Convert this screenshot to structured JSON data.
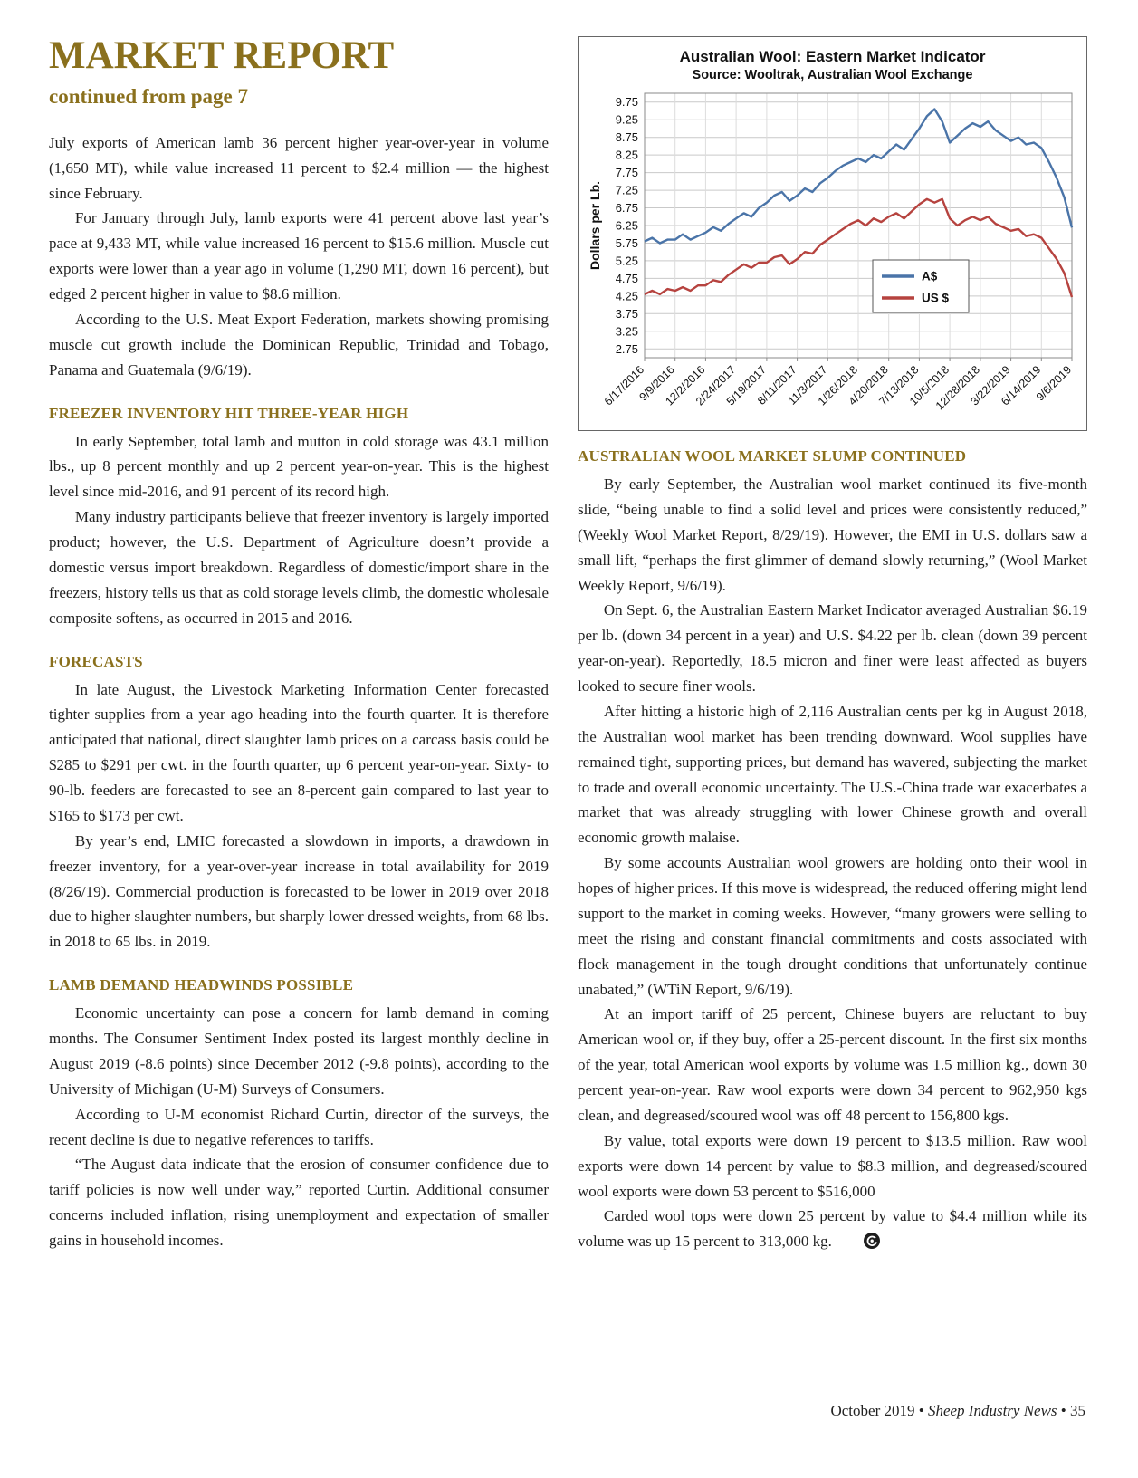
{
  "colors": {
    "accent": "#8a701d",
    "body_text": "#1f1f1f",
    "chart_blue": "#4a74a8",
    "chart_red": "#b6433f"
  },
  "header": {
    "title": "MARKET REPORT",
    "continued": "continued from page 7"
  },
  "left": {
    "intro": [
      "July exports of American lamb 36 percent higher year-over-year in volume (1,650 MT), while value increased 11 percent to $2.4 million — the highest since February.",
      "For January through July, lamb exports were 41 percent above last year’s pace at 9,433 MT, while value increased 16 percent to $15.6 million. Muscle cut exports were lower than a year ago in volume (1,290 MT, down 16 percent), but edged 2 percent higher in value to $8.6 million.",
      "According to the U.S. Meat Export Federation, markets showing promising muscle cut growth include the Dominican Republic, Trinidad and Tobago, Panama and Guatemala (9/6/19)."
    ],
    "sections": [
      {
        "heading": "FREEZER INVENTORY HIT THREE-YEAR HIGH",
        "paragraphs": [
          "In early September, total lamb and mutton in cold storage was 43.1 million lbs., up 8 percent monthly and up 2 percent year-on-year. This is the highest level since mid-2016, and 91 percent of its record high.",
          "Many industry participants believe that freezer inventory is largely imported product; however, the U.S. Department of Agriculture doesn’t provide a domestic versus import breakdown. Regardless of domestic/import share in the freezers, history tells us that as cold storage levels climb, the domestic wholesale composite softens, as occurred in 2015 and 2016."
        ]
      },
      {
        "heading": "FORECASTS",
        "paragraphs": [
          "In late August, the Livestock Marketing Information Center forecasted tighter supplies from a year ago heading into the fourth quarter. It is therefore anticipated that national, direct slaughter lamb prices on a carcass basis could be $285 to $291 per cwt. in the fourth quarter, up 6 percent year-on-year. Sixty- to 90-lb. feeders are forecasted to see an 8-percent gain compared to last year to $165 to $173 per cwt.",
          "By year’s end, LMIC forecasted a slowdown in imports, a drawdown in freezer inventory, for a year-over-year increase in total availability for 2019 (8/26/19). Commercial production is forecasted to be lower in 2019 over 2018 due to higher slaughter numbers, but sharply lower dressed weights, from 68 lbs. in 2018 to 65 lbs. in 2019."
        ]
      },
      {
        "heading": "LAMB DEMAND HEADWINDS POSSIBLE",
        "paragraphs": [
          "Economic uncertainty can pose a concern for lamb demand in coming months. The Consumer Sentiment Index posted its largest monthly decline in August 2019 (-8.6 points) since December 2012 (-9.8 points), according to the University of Michigan (U-M) Surveys of Consumers.",
          "According to U-M economist Richard Curtin, director of the surveys, the recent decline is due to negative references to tariffs.",
          "“The August data indicate that the erosion of consumer confidence due to tariff policies is now well under way,” reported Curtin. Additional consumer concerns included inflation, rising unemployment and expectation of smaller gains in household incomes."
        ]
      }
    ]
  },
  "right": {
    "sections": [
      {
        "heading": "AUSTRALIAN WOOL MARKET SLUMP CONTINUED",
        "paragraphs": [
          "By early September, the Australian wool market continued its five-month slide, “being unable to find a solid level and prices were consistently reduced,” (Weekly Wool Market Report, 8/29/19). However, the EMI in U.S. dollars saw a small lift, “perhaps the first glimmer of demand slowly returning,” (Wool Market Weekly Report, 9/6/19).",
          "On Sept. 6, the Australian Eastern Market Indicator averaged Australian $6.19 per lb. (down 34 percent in a year) and U.S. $4.22 per lb. clean (down 39 percent year-on-year). Reportedly, 18.5 micron and finer were least affected as buyers looked to secure finer wools.",
          "After hitting a historic high of 2,116 Australian cents per kg in August 2018, the Australian wool market has been trending downward. Wool supplies have remained tight, supporting prices, but demand has wavered, subjecting the market to trade and overall economic uncertainty. The U.S.-China trade war exacerbates a market that was already struggling with lower Chinese growth and overall economic growth malaise.",
          "By some accounts Australian wool growers are holding onto their wool in hopes of higher prices. If this move is widespread, the reduced offering might lend support to the market in coming weeks. However, “many growers were selling to meet the rising and constant financial commitments and costs associated with flock management in the tough drought conditions that unfortunately continue unabated,” (WTiN Report, 9/6/19).",
          "At an import tariff of 25 percent, Chinese buyers are reluctant to buy American wool or, if they buy, offer a 25-percent discount. In the first six months of the year, total American wool exports by volume was 1.5 million kg., down 30 percent year-on-year. Raw wool exports were down 34 percent to 962,950 kgs clean, and degreased/scoured wool was off 48 percent to 156,800 kgs.",
          "By value, total exports were down 19 percent to $13.5 million. Raw wool exports were down 14 percent by value to $8.3 million, and degreased/scoured wool exports were down 53 percent to $516,000",
          "Carded wool tops were down 25 percent by value to $4.4 million while its volume was up 15 percent to 313,000 kg."
        ]
      }
    ]
  },
  "footer": {
    "date": "October 2019",
    "separator": "•",
    "publication": "Sheep Industry News",
    "page_number": "35"
  },
  "chart_data": {
    "type": "line",
    "title": "Australian Wool: Eastern Market Indicator",
    "subtitle": "Source: Wooltrak, Australian Wool Exchange",
    "ylabel": "Dollars per Lb.",
    "ymin": 2.5,
    "ymax": 10.0,
    "ytick_step": 0.5,
    "yticks": [
      "9.75",
      "9.25",
      "8.75",
      "8.25",
      "7.75",
      "7.25",
      "6.75",
      "6.25",
      "5.75",
      "5.25",
      "4.75",
      "4.25",
      "3.75",
      "3.25",
      "2.75"
    ],
    "xticks": [
      "6/17/2016",
      "9/9/2016",
      "12/2/2016",
      "2/24/2017",
      "5/19/2017",
      "8/11/2017",
      "11/3/2017",
      "1/26/2018",
      "4/20/2018",
      "7/13/2018",
      "10/5/2018",
      "12/28/2018",
      "3/22/2019",
      "6/14/2019",
      "9/6/2019"
    ],
    "grid": true,
    "legend_position": "inside-right",
    "series": [
      {
        "name": "A$",
        "color": "#4a74a8",
        "values": [
          5.8,
          5.9,
          5.75,
          5.85,
          5.85,
          6.0,
          5.85,
          5.95,
          6.05,
          6.2,
          6.1,
          6.3,
          6.45,
          6.6,
          6.5,
          6.75,
          6.9,
          7.1,
          7.2,
          6.95,
          7.1,
          7.3,
          7.2,
          7.45,
          7.6,
          7.8,
          7.95,
          8.05,
          8.15,
          8.05,
          8.25,
          8.15,
          8.35,
          8.55,
          8.4,
          8.7,
          9.0,
          9.35,
          9.55,
          9.2,
          8.6,
          8.8,
          9.0,
          9.15,
          9.05,
          9.2,
          8.95,
          8.8,
          8.65,
          8.75,
          8.55,
          8.6,
          8.45,
          8.05,
          7.6,
          7.05,
          6.19
        ]
      },
      {
        "name": "US $",
        "color": "#b6433f",
        "values": [
          4.3,
          4.4,
          4.3,
          4.45,
          4.4,
          4.5,
          4.4,
          4.55,
          4.55,
          4.7,
          4.65,
          4.85,
          5.0,
          5.15,
          5.05,
          5.2,
          5.2,
          5.35,
          5.4,
          5.15,
          5.3,
          5.5,
          5.45,
          5.7,
          5.85,
          6.0,
          6.15,
          6.3,
          6.4,
          6.25,
          6.45,
          6.35,
          6.5,
          6.6,
          6.45,
          6.65,
          6.85,
          7.0,
          6.9,
          7.0,
          6.45,
          6.25,
          6.4,
          6.5,
          6.4,
          6.5,
          6.3,
          6.2,
          6.1,
          6.15,
          5.95,
          6.0,
          5.9,
          5.6,
          5.3,
          4.9,
          4.22
        ]
      }
    ]
  }
}
